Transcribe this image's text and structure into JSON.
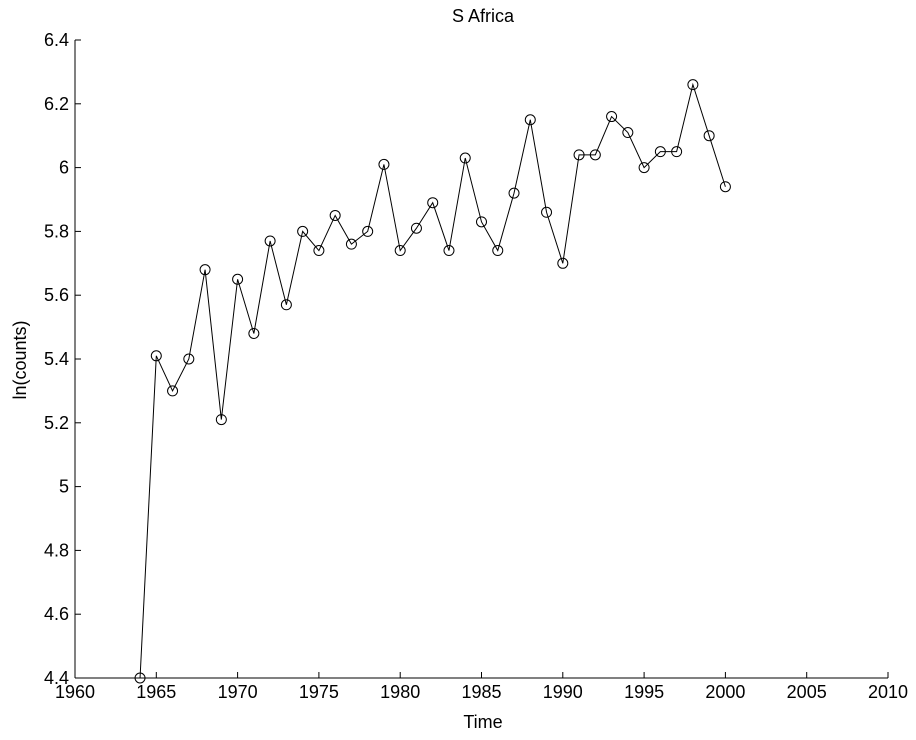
{
  "chart_data": {
    "type": "line",
    "title": "S Africa",
    "xlabel": "Time",
    "ylabel": "ln(counts)",
    "xlim": [
      1960,
      2010
    ],
    "ylim": [
      4.4,
      6.4
    ],
    "xticks": [
      "1960",
      "1965",
      "1970",
      "1975",
      "1980",
      "1985",
      "1990",
      "1995",
      "2000",
      "2005",
      "2010"
    ],
    "yticks": [
      "4.4",
      "4.6",
      "4.8",
      "5",
      "5.2",
      "5.4",
      "5.6",
      "5.8",
      "6",
      "6.2",
      "6.4"
    ],
    "grid": false,
    "marker": "circle",
    "line_color": "#000000",
    "marker_color": "#000000",
    "x": [
      1964,
      1965,
      1966,
      1967,
      1968,
      1969,
      1970,
      1971,
      1972,
      1973,
      1974,
      1975,
      1976,
      1977,
      1978,
      1979,
      1980,
      1981,
      1982,
      1983,
      1984,
      1985,
      1986,
      1987,
      1988,
      1989,
      1990,
      1991,
      1992,
      1993,
      1994,
      1995,
      1996,
      1997,
      1998,
      1999,
      2000
    ],
    "y": [
      4.4,
      5.41,
      5.3,
      5.4,
      5.68,
      5.21,
      5.65,
      5.48,
      5.77,
      5.57,
      5.8,
      5.74,
      5.85,
      5.76,
      5.8,
      6.01,
      5.74,
      5.81,
      5.89,
      5.74,
      6.03,
      5.83,
      5.74,
      5.92,
      6.15,
      5.86,
      5.7,
      6.04,
      6.04,
      6.16,
      6.11,
      6.0,
      6.05,
      6.05,
      6.26,
      6.1,
      5.94
    ]
  }
}
